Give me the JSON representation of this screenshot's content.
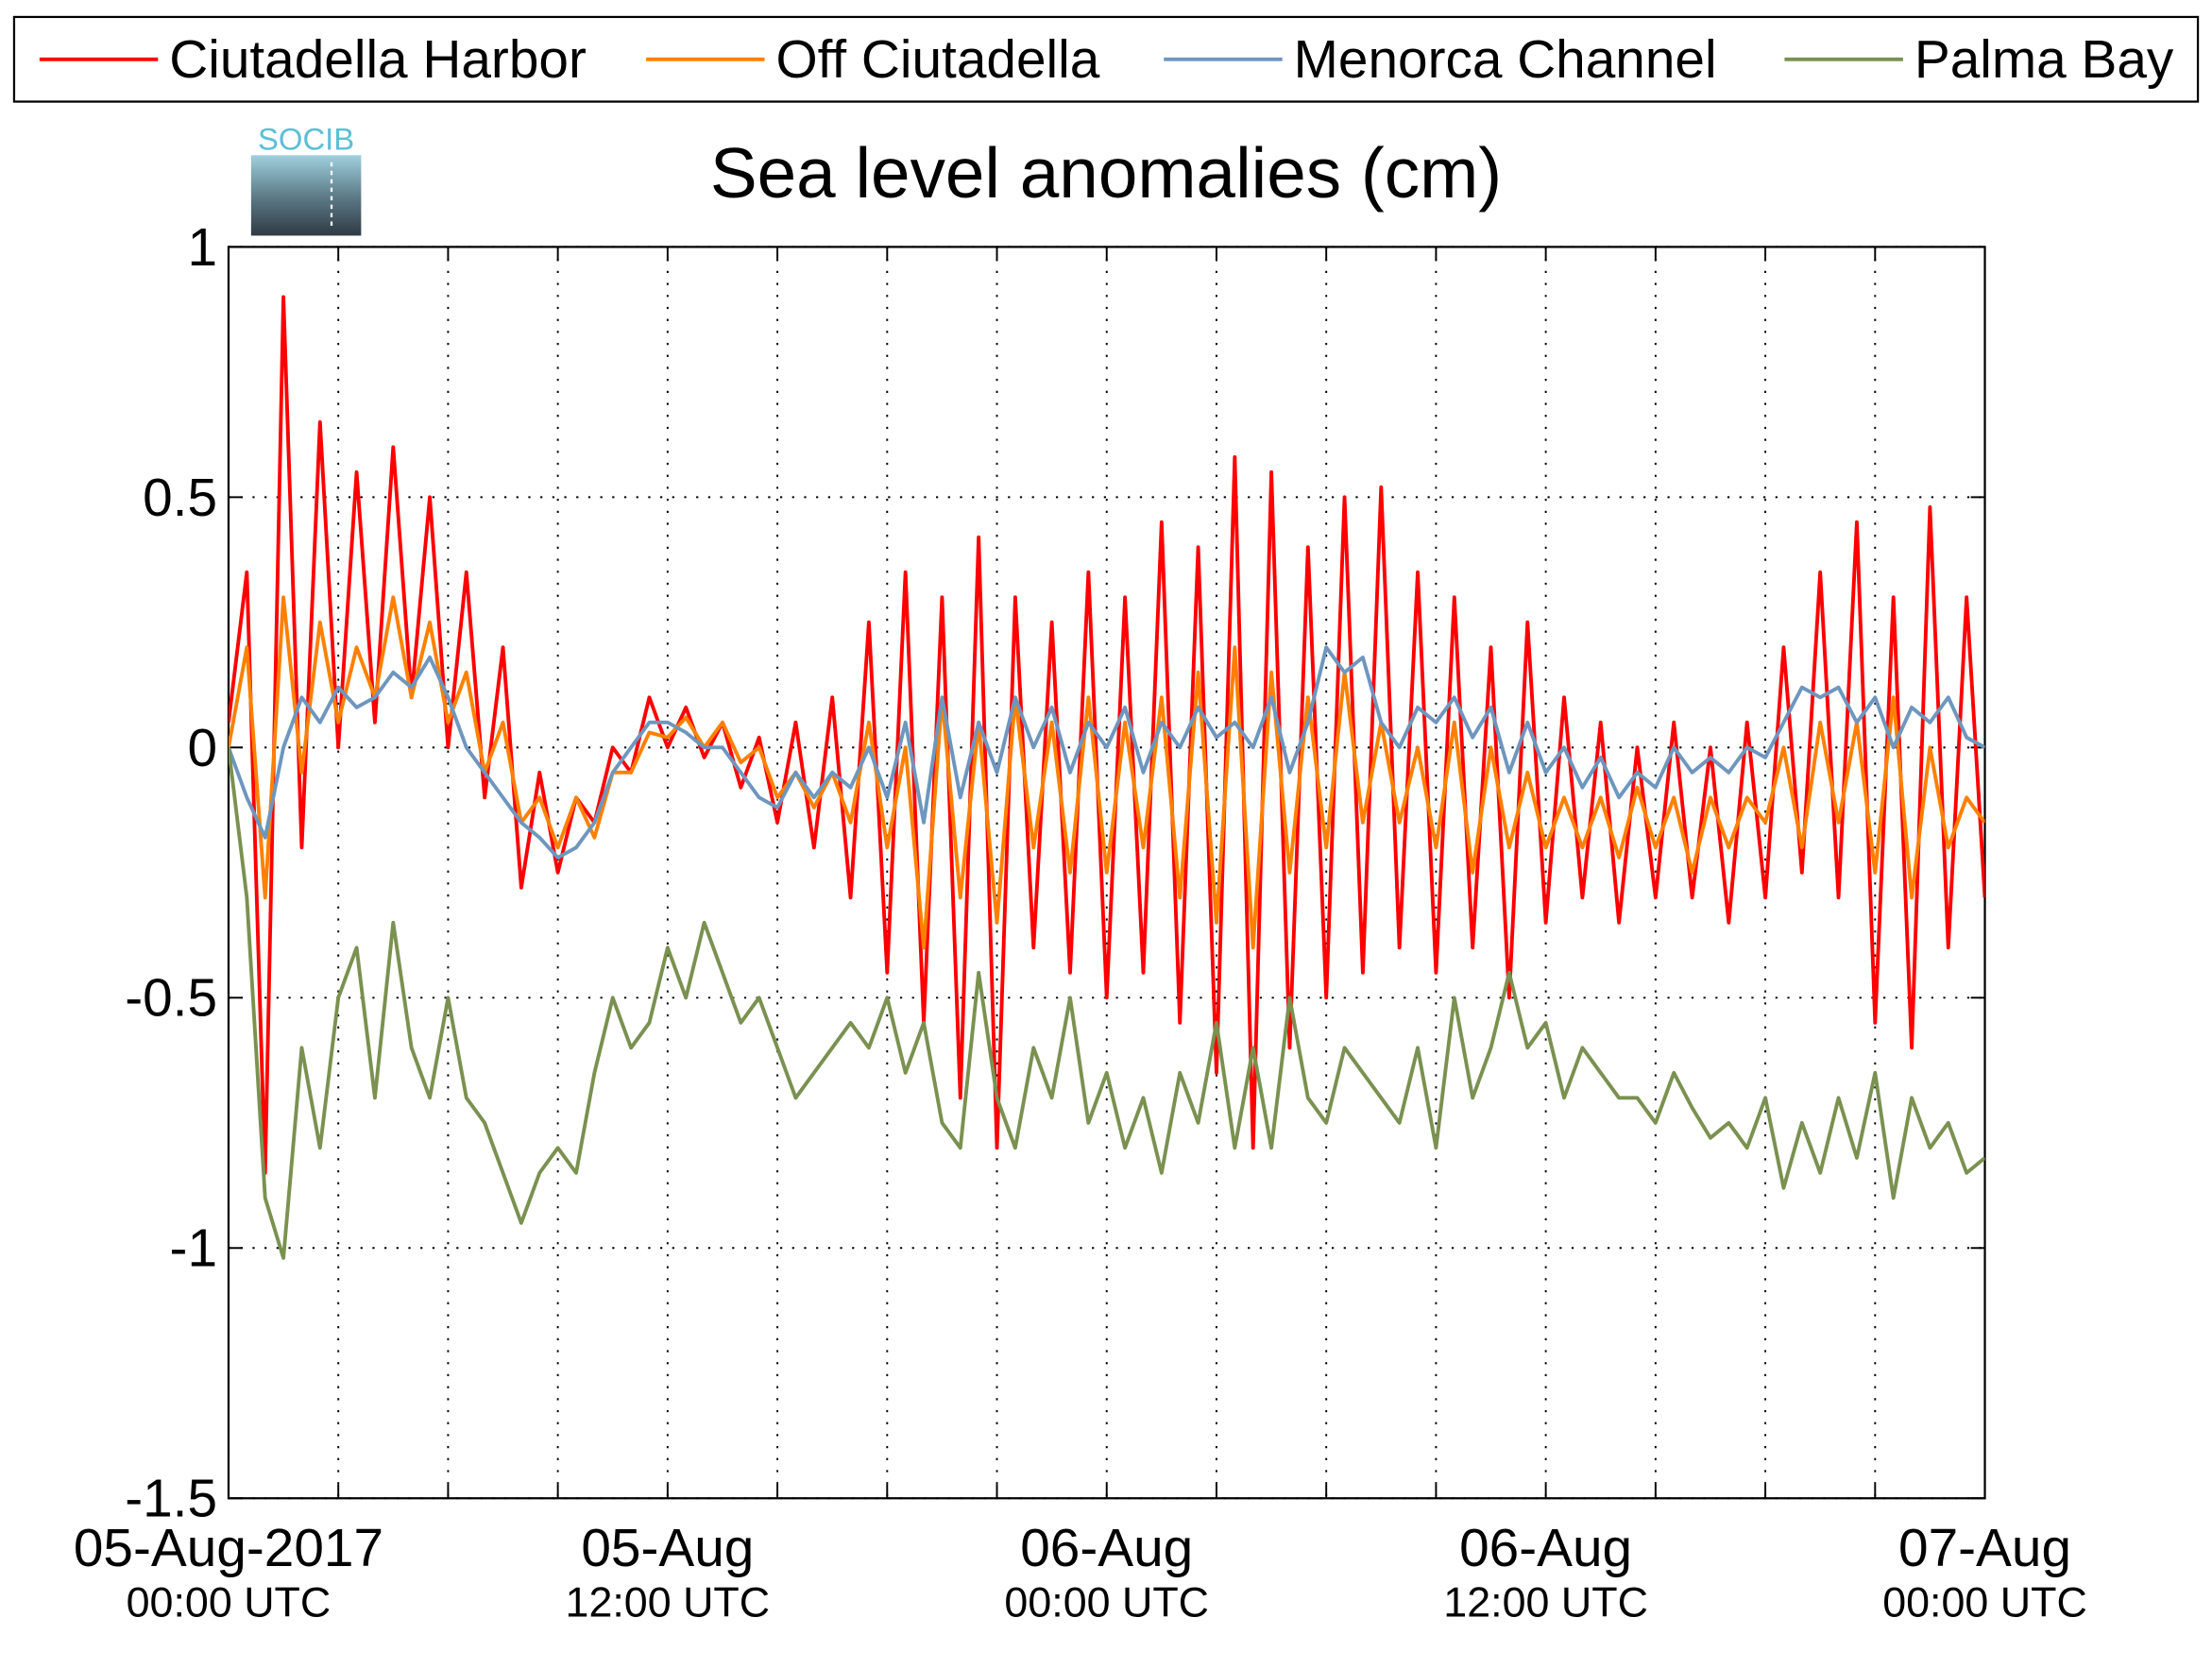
{
  "chart_data": {
    "type": "line",
    "title": "Sea level anomalies (cm)",
    "logo_text": "SOCIB",
    "legend": "top-outside",
    "grid": true,
    "ylim": [
      -1.5,
      1
    ],
    "yticks": [
      -1.5,
      -1,
      -0.5,
      0,
      0.5,
      1
    ],
    "xlim": [
      "2017-08-05T00:00",
      "2017-08-07T00:00"
    ],
    "xticks": [
      {
        "value": "2017-08-05T00:00",
        "label": "05-Aug-2017",
        "sublabel": "00:00 UTC"
      },
      {
        "value": "2017-08-05T03:00"
      },
      {
        "value": "2017-08-05T06:00"
      },
      {
        "value": "2017-08-05T09:00"
      },
      {
        "value": "2017-08-05T12:00",
        "label": "05-Aug",
        "sublabel": "12:00 UTC"
      },
      {
        "value": "2017-08-05T15:00"
      },
      {
        "value": "2017-08-05T18:00"
      },
      {
        "value": "2017-08-05T21:00"
      },
      {
        "value": "2017-08-06T00:00",
        "label": "06-Aug",
        "sublabel": "00:00 UTC"
      },
      {
        "value": "2017-08-06T03:00"
      },
      {
        "value": "2017-08-06T06:00"
      },
      {
        "value": "2017-08-06T09:00"
      },
      {
        "value": "2017-08-06T12:00",
        "label": "06-Aug",
        "sublabel": "12:00 UTC"
      },
      {
        "value": "2017-08-06T15:00"
      },
      {
        "value": "2017-08-06T18:00"
      },
      {
        "value": "2017-08-06T21:00"
      },
      {
        "value": "2017-08-07T00:00",
        "label": "07-Aug",
        "sublabel": "00:00 UTC"
      }
    ],
    "x": [
      "2017-08-05T00:00",
      "2017-08-05T00:30",
      "2017-08-05T01:00",
      "2017-08-05T01:30",
      "2017-08-05T02:00",
      "2017-08-05T02:30",
      "2017-08-05T03:00",
      "2017-08-05T03:30",
      "2017-08-05T04:00",
      "2017-08-05T04:30",
      "2017-08-05T05:00",
      "2017-08-05T05:30",
      "2017-08-05T06:00",
      "2017-08-05T06:30",
      "2017-08-05T07:00",
      "2017-08-05T07:30",
      "2017-08-05T08:00",
      "2017-08-05T08:30",
      "2017-08-05T09:00",
      "2017-08-05T09:30",
      "2017-08-05T10:00",
      "2017-08-05T10:30",
      "2017-08-05T11:00",
      "2017-08-05T11:30",
      "2017-08-05T12:00",
      "2017-08-05T12:30",
      "2017-08-05T13:00",
      "2017-08-05T13:30",
      "2017-08-05T14:00",
      "2017-08-05T14:30",
      "2017-08-05T15:00",
      "2017-08-05T15:30",
      "2017-08-05T16:00",
      "2017-08-05T16:30",
      "2017-08-05T17:00",
      "2017-08-05T17:30",
      "2017-08-05T18:00",
      "2017-08-05T18:30",
      "2017-08-05T19:00",
      "2017-08-05T19:30",
      "2017-08-05T20:00",
      "2017-08-05T20:30",
      "2017-08-05T21:00",
      "2017-08-05T21:30",
      "2017-08-05T22:00",
      "2017-08-05T22:30",
      "2017-08-05T23:00",
      "2017-08-05T23:30",
      "2017-08-06T00:00",
      "2017-08-06T00:30",
      "2017-08-06T01:00",
      "2017-08-06T01:30",
      "2017-08-06T02:00",
      "2017-08-06T02:30",
      "2017-08-06T03:00",
      "2017-08-06T03:30",
      "2017-08-06T04:00",
      "2017-08-06T04:30",
      "2017-08-06T05:00",
      "2017-08-06T05:30",
      "2017-08-06T06:00",
      "2017-08-06T06:30",
      "2017-08-06T07:00",
      "2017-08-06T07:30",
      "2017-08-06T08:00",
      "2017-08-06T08:30",
      "2017-08-06T09:00",
      "2017-08-06T09:30",
      "2017-08-06T10:00",
      "2017-08-06T10:30",
      "2017-08-06T11:00",
      "2017-08-06T11:30",
      "2017-08-06T12:00",
      "2017-08-06T12:30",
      "2017-08-06T13:00",
      "2017-08-06T13:30",
      "2017-08-06T14:00",
      "2017-08-06T14:30",
      "2017-08-06T15:00",
      "2017-08-06T15:30",
      "2017-08-06T16:00",
      "2017-08-06T16:30",
      "2017-08-06T17:00",
      "2017-08-06T17:30",
      "2017-08-06T18:00",
      "2017-08-06T18:30",
      "2017-08-06T19:00",
      "2017-08-06T19:30",
      "2017-08-06T20:00",
      "2017-08-06T20:30",
      "2017-08-06T21:00",
      "2017-08-06T21:30",
      "2017-08-06T22:00",
      "2017-08-06T22:30",
      "2017-08-06T23:00",
      "2017-08-06T23:30",
      "2017-08-07T00:00"
    ],
    "series": [
      {
        "name": "Ciutadella Harbor",
        "color": "#ff0000",
        "values": [
          0.05,
          0.35,
          -0.85,
          0.9,
          -0.2,
          0.65,
          0.0,
          0.55,
          0.05,
          0.6,
          0.1,
          0.5,
          0.0,
          0.35,
          -0.1,
          0.2,
          -0.28,
          -0.05,
          -0.25,
          -0.1,
          -0.15,
          0.0,
          -0.05,
          0.1,
          0.0,
          0.08,
          -0.02,
          0.05,
          -0.08,
          0.02,
          -0.15,
          0.05,
          -0.2,
          0.1,
          -0.3,
          0.25,
          -0.45,
          0.35,
          -0.55,
          0.3,
          -0.7,
          0.42,
          -0.8,
          0.3,
          -0.4,
          0.25,
          -0.45,
          0.35,
          -0.5,
          0.3,
          -0.45,
          0.45,
          -0.55,
          0.4,
          -0.65,
          0.58,
          -0.8,
          0.55,
          -0.6,
          0.4,
          -0.5,
          0.5,
          -0.45,
          0.52,
          -0.4,
          0.35,
          -0.45,
          0.3,
          -0.4,
          0.2,
          -0.5,
          0.25,
          -0.35,
          0.1,
          -0.3,
          0.05,
          -0.35,
          0.0,
          -0.3,
          0.05,
          -0.3,
          0.0,
          -0.35,
          0.05,
          -0.3,
          0.2,
          -0.25,
          0.35,
          -0.3,
          0.45,
          -0.55,
          0.3,
          -0.6,
          0.48,
          -0.4,
          0.3,
          -0.3
        ]
      },
      {
        "name": "Off Ciutadella",
        "color": "#ff8000",
        "values": [
          0.0,
          0.2,
          -0.3,
          0.3,
          -0.05,
          0.25,
          0.05,
          0.2,
          0.1,
          0.3,
          0.1,
          0.25,
          0.05,
          0.15,
          -0.05,
          0.05,
          -0.15,
          -0.1,
          -0.2,
          -0.1,
          -0.18,
          -0.05,
          -0.05,
          0.03,
          0.02,
          0.06,
          0.0,
          0.05,
          -0.03,
          0.0,
          -0.1,
          -0.05,
          -0.12,
          -0.05,
          -0.15,
          0.05,
          -0.2,
          0.0,
          -0.4,
          0.1,
          -0.3,
          0.05,
          -0.35,
          0.1,
          -0.2,
          0.05,
          -0.25,
          0.1,
          -0.25,
          0.05,
          -0.2,
          0.1,
          -0.3,
          0.15,
          -0.35,
          0.2,
          -0.4,
          0.15,
          -0.25,
          0.1,
          -0.2,
          0.15,
          -0.15,
          0.05,
          -0.15,
          0.0,
          -0.2,
          0.05,
          -0.25,
          0.0,
          -0.2,
          -0.05,
          -0.2,
          -0.1,
          -0.2,
          -0.1,
          -0.22,
          -0.08,
          -0.2,
          -0.1,
          -0.25,
          -0.1,
          -0.2,
          -0.1,
          -0.15,
          0.0,
          -0.2,
          0.05,
          -0.15,
          0.05,
          -0.25,
          0.1,
          -0.3,
          0.0,
          -0.2,
          -0.1,
          -0.15
        ]
      },
      {
        "name": "Menorca Channel",
        "color": "#6e96be",
        "values": [
          0.0,
          -0.1,
          -0.18,
          0.0,
          0.1,
          0.05,
          0.12,
          0.08,
          0.1,
          0.15,
          0.12,
          0.18,
          0.1,
          0.0,
          -0.05,
          -0.1,
          -0.15,
          -0.18,
          -0.22,
          -0.2,
          -0.15,
          -0.05,
          0.0,
          0.05,
          0.05,
          0.03,
          0.0,
          0.0,
          -0.05,
          -0.1,
          -0.12,
          -0.05,
          -0.1,
          -0.05,
          -0.08,
          0.0,
          -0.1,
          0.05,
          -0.15,
          0.1,
          -0.1,
          0.05,
          -0.05,
          0.1,
          0.0,
          0.08,
          -0.05,
          0.05,
          0.0,
          0.08,
          -0.05,
          0.05,
          0.0,
          0.08,
          0.02,
          0.05,
          0.0,
          0.1,
          -0.05,
          0.05,
          0.2,
          0.15,
          0.18,
          0.05,
          0.0,
          0.08,
          0.05,
          0.1,
          0.02,
          0.08,
          -0.05,
          0.05,
          -0.05,
          0.0,
          -0.08,
          -0.02,
          -0.1,
          -0.05,
          -0.08,
          0.0,
          -0.05,
          -0.02,
          -0.05,
          0.0,
          -0.02,
          0.05,
          0.12,
          0.1,
          0.12,
          0.05,
          0.1,
          0.0,
          0.08,
          0.05,
          0.1,
          0.02,
          0.0
        ]
      },
      {
        "name": "Palma Bay",
        "color": "#7a9150",
        "values": [
          0.0,
          -0.3,
          -0.9,
          -1.02,
          -0.6,
          -0.8,
          -0.5,
          -0.4,
          -0.7,
          -0.35,
          -0.6,
          -0.7,
          -0.5,
          -0.7,
          -0.75,
          -0.85,
          -0.95,
          -0.85,
          -0.8,
          -0.85,
          -0.65,
          -0.5,
          -0.6,
          -0.55,
          -0.4,
          -0.5,
          -0.35,
          -0.45,
          -0.55,
          -0.5,
          -0.6,
          -0.7,
          -0.65,
          -0.6,
          -0.55,
          -0.6,
          -0.5,
          -0.65,
          -0.55,
          -0.75,
          -0.8,
          -0.45,
          -0.7,
          -0.8,
          -0.6,
          -0.7,
          -0.5,
          -0.75,
          -0.65,
          -0.8,
          -0.7,
          -0.85,
          -0.65,
          -0.75,
          -0.55,
          -0.8,
          -0.6,
          -0.8,
          -0.5,
          -0.7,
          -0.75,
          -0.6,
          -0.65,
          -0.7,
          -0.75,
          -0.6,
          -0.8,
          -0.5,
          -0.7,
          -0.6,
          -0.45,
          -0.6,
          -0.55,
          -0.7,
          -0.6,
          -0.65,
          -0.7,
          -0.7,
          -0.75,
          -0.65,
          -0.72,
          -0.78,
          -0.75,
          -0.8,
          -0.7,
          -0.88,
          -0.75,
          -0.85,
          -0.7,
          -0.82,
          -0.65,
          -0.9,
          -0.7,
          -0.8,
          -0.75,
          -0.85,
          -0.82
        ]
      }
    ]
  }
}
